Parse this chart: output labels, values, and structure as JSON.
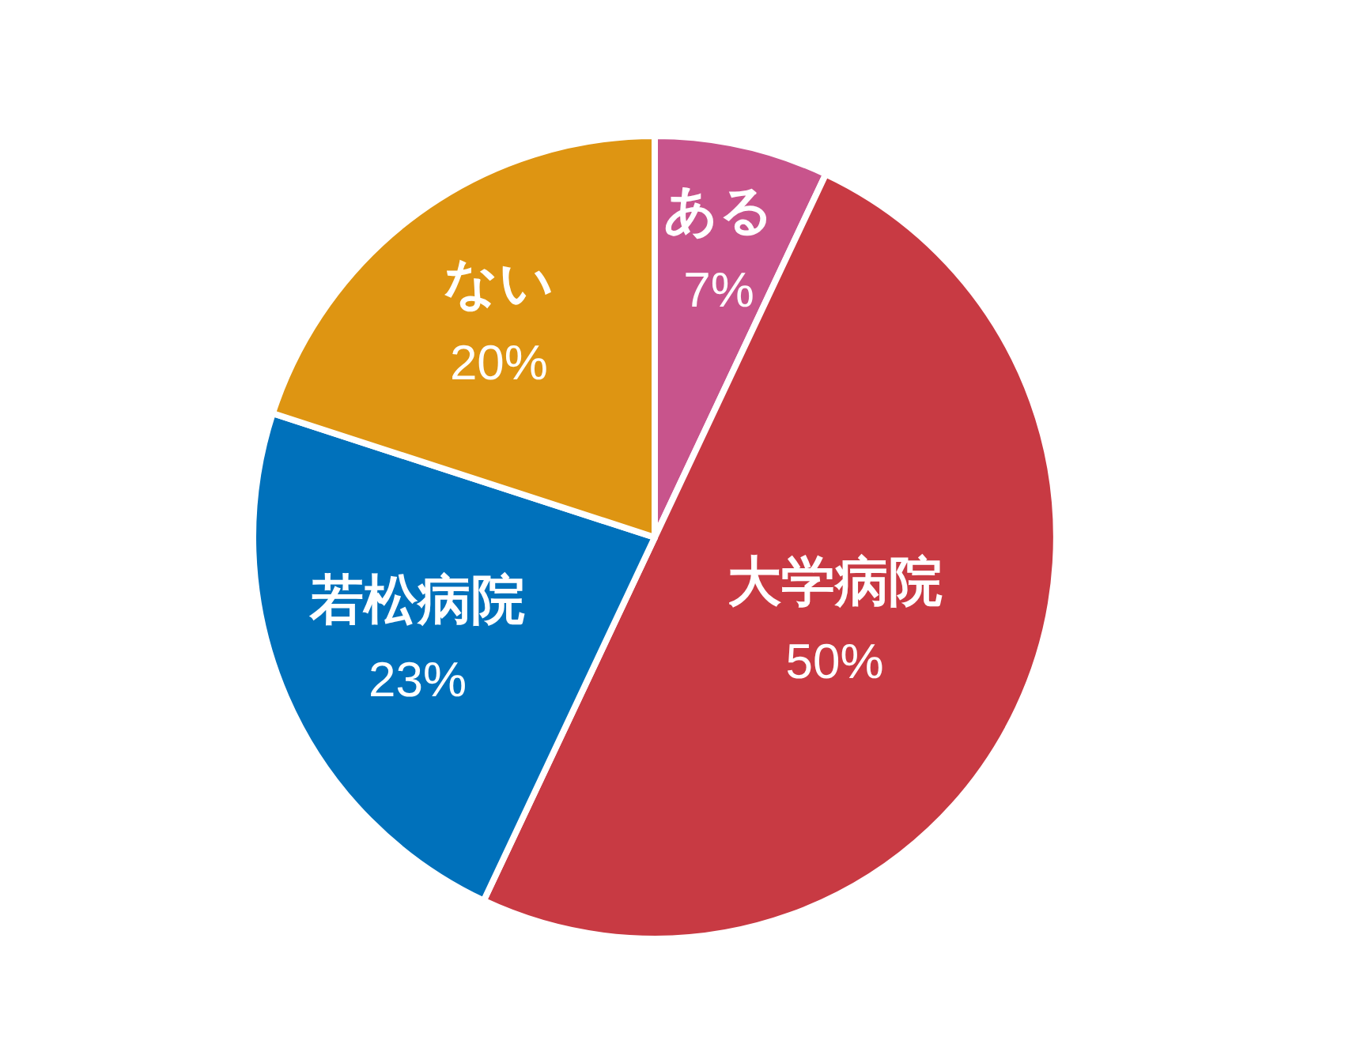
{
  "chart_data": {
    "type": "pie",
    "categories": [
      "ある",
      "大学病院",
      "若松病院",
      "ない"
    ],
    "values": [
      7,
      50,
      23,
      20
    ],
    "colors": [
      "#c8548c",
      "#c83a43",
      "#0071bb",
      "#de9512"
    ],
    "value_labels": [
      "7%",
      "50%",
      "23%",
      "20%"
    ]
  }
}
